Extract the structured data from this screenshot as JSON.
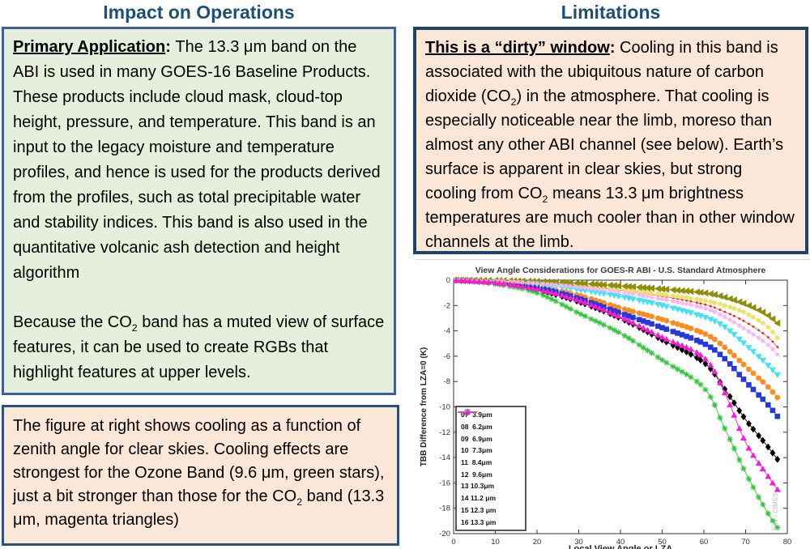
{
  "left_column": {
    "header": "Impact on Operations",
    "header_color": "#1F4E79",
    "box1": {
      "bg": "#E6EFDB",
      "border": "#3E5F9D",
      "paragraphs": [
        [
          {
            "t": "Primary Application",
            "b": true,
            "u": true
          },
          {
            "t": ": ",
            "b": true
          },
          {
            "t": "The 13.3 μm band on the ABI is used in many GOES-16 Baseline Products. These products include cloud mask, cloud-top height, pressure, and temperature. This band is an input to the legacy moisture and temperature profiles, and hence is used for the products derived from the profiles, such as total precipitable water and stability indices. This band is also used in the quantitative volcanic ash detection and height algorithm"
          }
        ],
        [
          {
            "t": "Because the CO"
          },
          {
            "t": "2",
            "sub": true
          },
          {
            "t": " band has a muted view of surface features, it can be used to create RGBs that highlight features at upper levels."
          }
        ]
      ]
    },
    "box2": {
      "bg": "#FBE7D7",
      "border": "#2F5179",
      "paragraphs": [
        [
          {
            "t": "The figure at right shows cooling as a function of zenith angle for clear skies.  Cooling effects are strongest for the Ozone Band (9.6 μm, green stars), just a bit stronger than those for the CO"
          },
          {
            "t": "2",
            "sub": true
          },
          {
            "t": " band (13.3 μm, magenta triangles)"
          }
        ]
      ]
    }
  },
  "right_column": {
    "header": "Limitations",
    "header_color": "#1F4E79",
    "box": {
      "bg": "#FBE7D7",
      "border": "#1F4465",
      "paragraphs": [
        [
          {
            "t": "This is a “dirty” window",
            "b": true,
            "u": true
          },
          {
            "t": ": ",
            "b": true
          },
          {
            "t": "Cooling in this band is associated with the ubiquitous nature of carbon dioxide (CO"
          },
          {
            "t": "2",
            "sub": true
          },
          {
            "t": ") in the atmosphere.   That cooling is especially noticeable near the limb, moreso than almost any other ABI channel (see below). Earth’s surface is apparent in clear skies, but strong cooling from CO"
          },
          {
            "t": "2",
            "sub": true
          },
          {
            "t": " means 13.3 μm brightness temperatures are much cooler than in other window channels at the limb."
          }
        ]
      ]
    }
  },
  "chart_data": {
    "type": "line",
    "title": "View Angle Considerations for GOES-R ABI - U.S. Standard Atmosphere",
    "xlabel": "Local View Angle or LZA",
    "ylabel": "TBB Difference from LZA=0 (K)",
    "watermark": "UW / CIMSS",
    "xlim": [
      0,
      80
    ],
    "ylim": [
      -20,
      0
    ],
    "xticks": [
      0,
      10,
      20,
      30,
      40,
      50,
      60,
      70,
      80
    ],
    "yticks": [
      0,
      -2,
      -4,
      -6,
      -8,
      -10,
      -12,
      -14,
      -16,
      -18,
      -20
    ],
    "grid": false,
    "legend_position": "lower left",
    "x": [
      0,
      10,
      20,
      30,
      40,
      50,
      60,
      65,
      70,
      75,
      78
    ],
    "series": [
      {
        "name": "07  3.9μm",
        "line_color": "#f4837b",
        "marker_color": "#e02a1a",
        "marker": "dot",
        "size": 1.4,
        "values": [
          0,
          -0.05,
          -0.2,
          -0.45,
          -0.8,
          -1.25,
          -1.9,
          -2.5,
          -3.3,
          -4.4,
          -5.4
        ]
      },
      {
        "name": "08  6.2μm",
        "line_color": "#ff8c1e",
        "marker_color": "#ff8c1e",
        "marker": "circle",
        "size": 3.4,
        "values": [
          0,
          -0.12,
          -0.5,
          -1.2,
          -2.2,
          -3.1,
          -4.2,
          -5.3,
          -6.8,
          -8.3,
          -9.4
        ]
      },
      {
        "name": "09  6.9μm",
        "line_color": "#2438dd",
        "marker_color": "#2438dd",
        "marker": "square",
        "size": 3.3,
        "values": [
          0,
          -0.15,
          -0.6,
          -1.45,
          -2.6,
          -3.75,
          -5.0,
          -6.2,
          -8.0,
          -9.7,
          -10.9
        ]
      },
      {
        "name": "10  7.3μm",
        "line_color": "#000000",
        "marker_color": "#000000",
        "marker": "diamond",
        "size": 3.4,
        "values": [
          0,
          -0.2,
          -0.75,
          -1.7,
          -3.0,
          -4.7,
          -6.5,
          -8.6,
          -11.0,
          -13.0,
          -14.3
        ]
      },
      {
        "name": "11  8.4μm",
        "line_color": "#45e1f2",
        "marker_color": "#45e1f2",
        "marker": "tri-down",
        "size": 4.2,
        "values": [
          0,
          -0.08,
          -0.33,
          -0.75,
          -1.3,
          -2.0,
          -2.9,
          -3.7,
          -5.1,
          -6.6,
          -7.6
        ]
      },
      {
        "name": "12  9.6μm",
        "line_color": "#2ec437",
        "marker_color": "#2ec437",
        "marker": "star",
        "size": 3.6,
        "values": [
          0,
          -0.3,
          -1.0,
          -2.6,
          -4.2,
          -6.3,
          -8.5,
          -11.7,
          -15.2,
          -18.2,
          -19.7
        ]
      },
      {
        "name": "13 10.3μm",
        "line_color": "#eae46e",
        "marker_color": "#eae46e",
        "marker": "circle",
        "size": 2.9,
        "values": [
          0,
          -0.04,
          -0.15,
          -0.38,
          -0.7,
          -1.1,
          -1.6,
          -2.0,
          -2.6,
          -3.6,
          -4.7
        ]
      },
      {
        "name": "14 11.2 μm",
        "line_color": "#8f8d0b",
        "marker_color": "#8f8d0b",
        "marker": "tri-left",
        "size": 4.4,
        "values": [
          0,
          -0.02,
          -0.1,
          -0.24,
          -0.45,
          -0.7,
          -1.0,
          -1.35,
          -1.9,
          -2.7,
          -3.5
        ]
      },
      {
        "name": "15 12.3 μm",
        "line_color": "#f6b6f0",
        "marker_color": "#f6b6f0",
        "marker": "star",
        "size": 3.0,
        "values": [
          0,
          -0.06,
          -0.24,
          -0.55,
          -0.95,
          -1.5,
          -2.2,
          -2.9,
          -3.9,
          -5.0,
          -6.0
        ]
      },
      {
        "name": "16 13.3 μm",
        "line_color": "#f41ed2",
        "marker_color": "#f41ed2",
        "marker": "tri-up",
        "size": 4.0,
        "values": [
          0,
          -0.2,
          -0.7,
          -1.6,
          -2.9,
          -4.5,
          -6.1,
          -8.9,
          -12.8,
          -15.3,
          -16.7
        ]
      }
    ]
  }
}
